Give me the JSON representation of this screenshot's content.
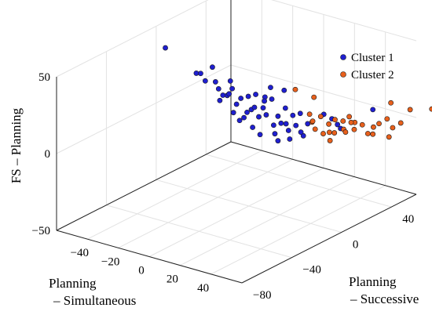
{
  "chart_data": {
    "type": "scatter3d",
    "grid": true,
    "legend_placement": "top-right",
    "axes": {
      "x": {
        "label_lines": [
          "Planning",
          "– Simultaneous"
        ],
        "range": [
          -60,
          60
        ],
        "ticks": [
          -40,
          -20,
          0,
          20,
          40
        ]
      },
      "y": {
        "label_lines": [
          "Planning",
          "– Successive"
        ],
        "range": [
          -80,
          60
        ],
        "ticks": [
          -80,
          -40,
          0,
          40
        ]
      },
      "z": {
        "label": "FS – Planning",
        "range": [
          -50,
          50
        ],
        "ticks": [
          -50,
          0,
          50
        ]
      }
    },
    "series": [
      {
        "name": "Cluster 1",
        "color": "#1f1fd0",
        "points": [
          [
            -46,
            -10,
            44
          ],
          [
            -30,
            -5,
            30
          ],
          [
            -28,
            -4,
            30
          ],
          [
            -25,
            -4,
            26
          ],
          [
            -22,
            -2,
            35
          ],
          [
            -20,
            -2,
            26
          ],
          [
            -18,
            -2,
            22
          ],
          [
            -16,
            -1,
            18
          ],
          [
            -14,
            0,
            18
          ],
          [
            -12,
            0,
            28
          ],
          [
            -10,
            -1,
            24
          ],
          [
            -8,
            0,
            14
          ],
          [
            -6,
            1,
            18
          ],
          [
            -4,
            1,
            6
          ],
          [
            -2,
            2,
            20
          ],
          [
            0,
            2,
            12
          ],
          [
            2,
            3,
            22
          ],
          [
            4,
            3,
            8
          ],
          [
            6,
            4,
            14
          ],
          [
            8,
            4,
            10
          ],
          [
            10,
            5,
            28
          ],
          [
            12,
            5,
            4
          ],
          [
            14,
            6,
            10
          ],
          [
            16,
            6,
            6
          ],
          [
            18,
            7,
            16
          ],
          [
            20,
            7,
            2
          ],
          [
            22,
            8,
            12
          ],
          [
            24,
            8,
            6
          ],
          [
            26,
            9,
            14
          ],
          [
            28,
            9,
            0
          ],
          [
            30,
            10,
            8
          ],
          [
            -6,
            0,
            4
          ],
          [
            -10,
            0,
            8
          ],
          [
            0,
            3,
            0
          ],
          [
            4,
            4,
            -4
          ],
          [
            14,
            6,
            -6
          ],
          [
            20,
            8,
            -4
          ],
          [
            18,
            6,
            28
          ],
          [
            8,
            3,
            22
          ],
          [
            -2,
            1,
            10
          ],
          [
            6,
            5,
            18
          ],
          [
            12,
            6,
            -2
          ],
          [
            -18,
            -1,
            14
          ],
          [
            -12,
            -1,
            20
          ],
          [
            24,
            12,
            0
          ],
          [
            34,
            18,
            12
          ],
          [
            36,
            22,
            8
          ],
          [
            38,
            24,
            4
          ],
          [
            40,
            24,
            2
          ],
          [
            48,
            40,
            10
          ],
          [
            10,
            6,
            20
          ],
          [
            2,
            2,
            14
          ],
          [
            16,
            10,
            4
          ]
        ]
      },
      {
        "name": "Cluster 2",
        "color": "#e8601c",
        "points": [
          [
            26,
            20,
            20
          ],
          [
            28,
            16,
            6
          ],
          [
            30,
            14,
            8
          ],
          [
            32,
            18,
            10
          ],
          [
            34,
            22,
            4
          ],
          [
            36,
            20,
            0
          ],
          [
            38,
            22,
            8
          ],
          [
            40,
            26,
            6
          ],
          [
            42,
            24,
            2
          ],
          [
            40,
            28,
            -2
          ],
          [
            44,
            30,
            0
          ],
          [
            46,
            34,
            2
          ],
          [
            48,
            36,
            -4
          ],
          [
            50,
            38,
            0
          ],
          [
            52,
            40,
            2
          ],
          [
            54,
            44,
            4
          ],
          [
            56,
            46,
            -2
          ],
          [
            58,
            50,
            0
          ],
          [
            46,
            28,
            6
          ],
          [
            44,
            26,
            10
          ],
          [
            38,
            18,
            -4
          ],
          [
            30,
            16,
            2
          ],
          [
            52,
            48,
            -10
          ],
          [
            50,
            52,
            10
          ],
          [
            56,
            60,
            4
          ],
          [
            62,
            70,
            2
          ],
          [
            64,
            74,
            12
          ],
          [
            36,
            24,
            -2
          ],
          [
            42,
            30,
            4
          ],
          [
            48,
            40,
            -6
          ],
          [
            28,
            14,
            12
          ],
          [
            32,
            20,
            -2
          ],
          [
            22,
            10,
            28
          ]
        ]
      }
    ]
  }
}
